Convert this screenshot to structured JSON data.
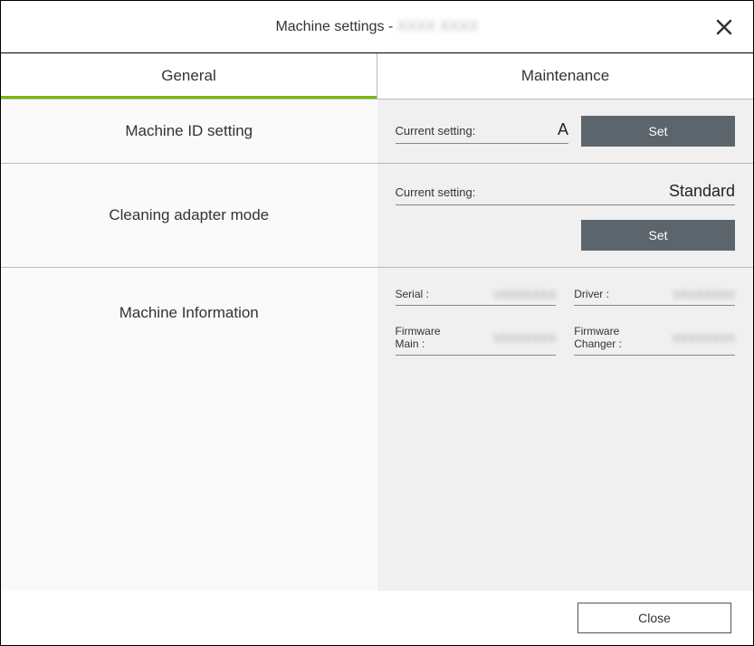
{
  "titlebar": {
    "prefix": "Machine settings - ",
    "suffix_placeholder": "XXXX XXXX"
  },
  "tabs": {
    "general": "General",
    "maintenance": "Maintenance",
    "active": "general"
  },
  "rows": {
    "machine_id": {
      "label": "Machine ID setting",
      "current_setting_label": "Current setting:",
      "current_value": "A",
      "set_button": "Set"
    },
    "cleaning_adapter": {
      "label": "Cleaning adapter mode",
      "current_setting_label": "Current setting:",
      "current_value": "Standard",
      "set_button": "Set"
    },
    "machine_info": {
      "label": "Machine Information",
      "serial_label": "Serial :",
      "serial_value": "VXXXXXXX",
      "driver_label": "Driver :",
      "driver_value": "VXXXXXXX",
      "firmware_main_label": "Firmware\nMain :",
      "firmware_main_value": "VXXXXXXX",
      "firmware_changer_label": "Firmware\nChanger :",
      "firmware_changer_value": "VXXXXXXX"
    }
  },
  "footer": {
    "close": "Close"
  },
  "colors": {
    "accent": "#7ab800",
    "button_bg": "#5b656b",
    "panel_bg": "#f0f0f0",
    "label_bg": "#fafafa",
    "border": "#bbbbbb"
  }
}
